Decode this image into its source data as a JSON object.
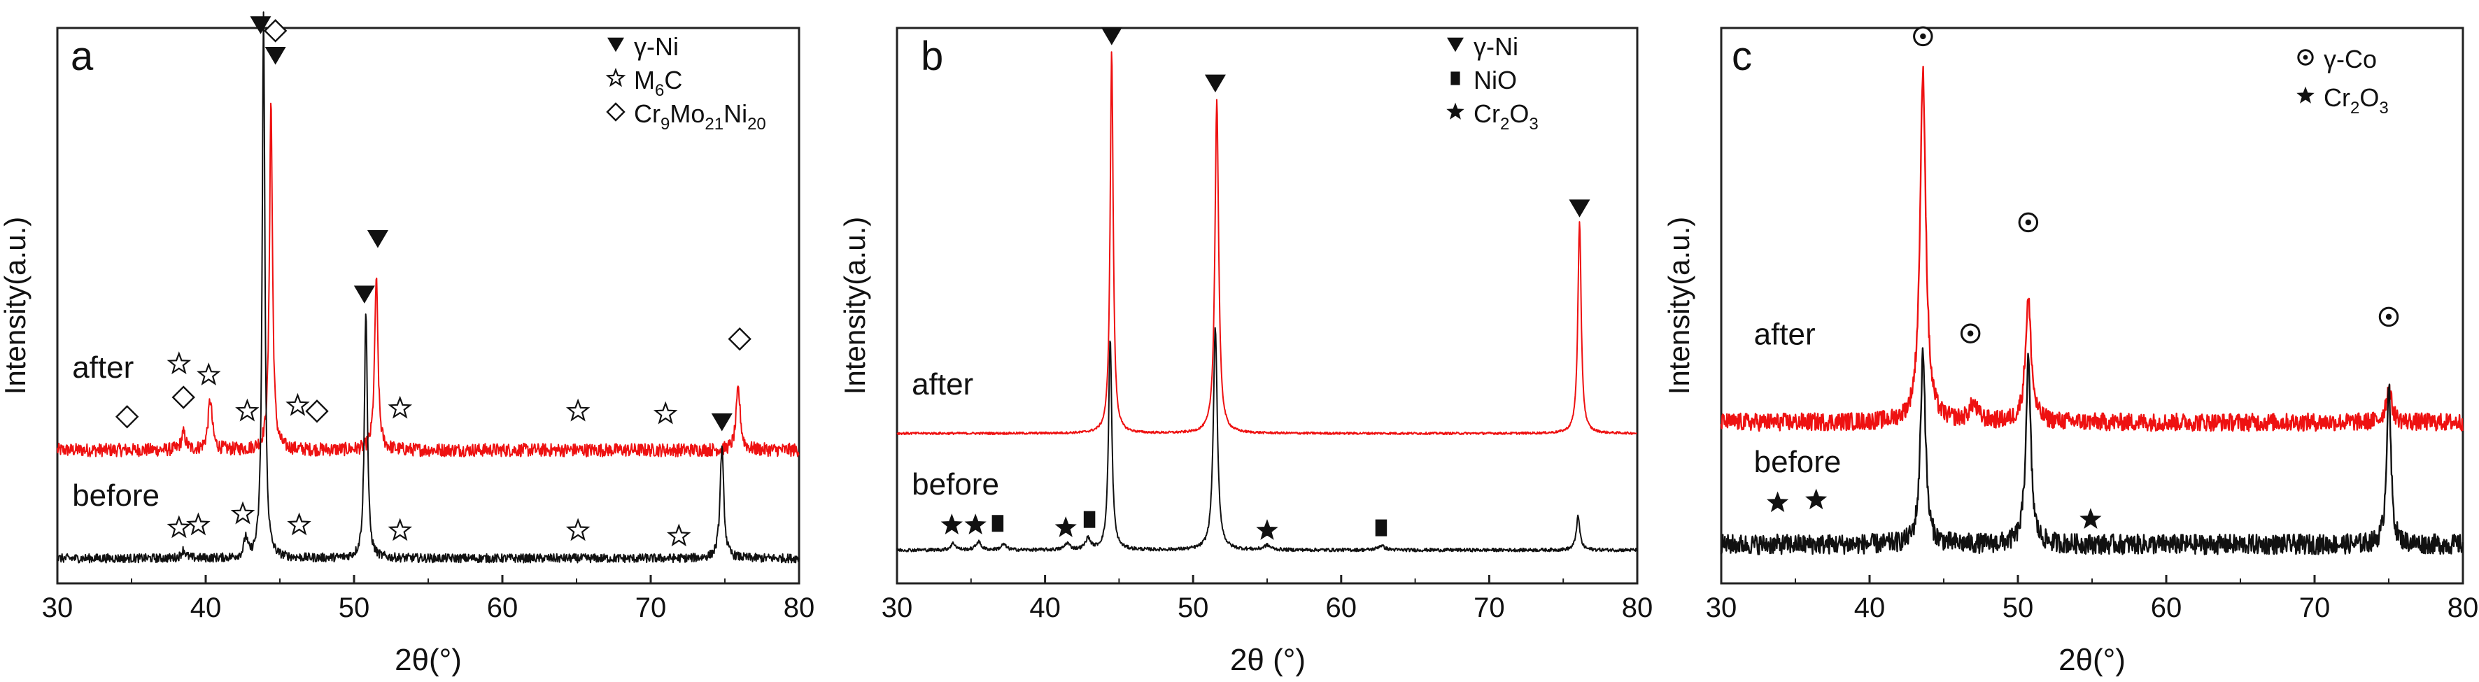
{
  "colors": {
    "after": "#ee1111",
    "before": "#111111",
    "axis": "#222222",
    "text": "#111111"
  },
  "chart_data": [
    {
      "type": "line",
      "panel": "a",
      "title": "",
      "xlabel": "2θ(°)",
      "ylabel": "Intensity(a.u.)",
      "xlim": [
        30,
        80
      ],
      "xticks": [
        30,
        40,
        50,
        60,
        70,
        80
      ],
      "y_ticks_shown": false,
      "legend": [
        {
          "symbol": "triangle-down",
          "label": "γ-Ni",
          "parts": [
            [
              "γ-Ni",
              ""
            ]
          ]
        },
        {
          "symbol": "star-open",
          "label": "M6C",
          "parts": [
            [
              "M",
              ""
            ],
            [
              "6",
              "sub"
            ],
            [
              "C",
              ""
            ]
          ]
        },
        {
          "symbol": "diamond-open",
          "label": "Cr9Mo21Ni20",
          "parts": [
            [
              "Cr",
              ""
            ],
            [
              "9",
              "sub"
            ],
            [
              "Mo",
              ""
            ],
            [
              "21",
              "sub"
            ],
            [
              "Ni",
              ""
            ],
            [
              "20",
              "sub"
            ]
          ]
        }
      ],
      "series": [
        {
          "name": "after",
          "color": "#ee1111",
          "baseline": 0.24,
          "noise": 0.012,
          "peaks": [
            {
              "x": 38.5,
              "height": 0.03,
              "width": 0.25
            },
            {
              "x": 40.3,
              "height": 0.09,
              "width": 0.25
            },
            {
              "x": 44.4,
              "height": 0.63,
              "width": 0.18
            },
            {
              "x": 51.5,
              "height": 0.31,
              "width": 0.2
            },
            {
              "x": 75.9,
              "height": 0.11,
              "width": 0.25
            }
          ],
          "markers": [
            {
              "x": 34.7,
              "y": 0.3,
              "symbol": "diamond-open"
            },
            {
              "x": 38.2,
              "y": 0.395,
              "symbol": "star-open"
            },
            {
              "x": 38.5,
              "y": 0.335,
              "symbol": "diamond-open"
            },
            {
              "x": 40.2,
              "y": 0.375,
              "symbol": "star-open"
            },
            {
              "x": 42.8,
              "y": 0.31,
              "symbol": "star-open"
            },
            {
              "x": 44.7,
              "y": 0.995,
              "symbol": "diamond-open"
            },
            {
              "x": 44.7,
              "y": 0.95,
              "symbol": "triangle-down"
            },
            {
              "x": 46.2,
              "y": 0.32,
              "symbol": "star-open"
            },
            {
              "x": 47.5,
              "y": 0.31,
              "symbol": "diamond-open"
            },
            {
              "x": 50.7,
              "y": 0.52,
              "symbol": "triangle-down"
            },
            {
              "x": 51.6,
              "y": 0.62,
              "symbol": "triangle-down"
            },
            {
              "x": 53.1,
              "y": 0.315,
              "symbol": "star-open"
            },
            {
              "x": 65.1,
              "y": 0.31,
              "symbol": "star-open"
            },
            {
              "x": 71.0,
              "y": 0.305,
              "symbol": "star-open"
            },
            {
              "x": 76.0,
              "y": 0.44,
              "symbol": "diamond-open"
            }
          ],
          "label": "after",
          "label_at": {
            "x": 31.0,
            "y": 0.37
          }
        },
        {
          "name": "before",
          "color": "#111111",
          "baseline": 0.045,
          "noise": 0.008,
          "peaks": [
            {
              "x": 38.5,
              "height": 0.015,
              "width": 0.25
            },
            {
              "x": 42.7,
              "height": 0.035,
              "width": 0.2
            },
            {
              "x": 43.9,
              "height": 0.98,
              "width": 0.16
            },
            {
              "x": 50.8,
              "height": 0.45,
              "width": 0.18
            },
            {
              "x": 74.8,
              "height": 0.2,
              "width": 0.22
            }
          ],
          "markers": [
            {
              "x": 38.2,
              "y": 0.1,
              "symbol": "star-open"
            },
            {
              "x": 39.5,
              "y": 0.105,
              "symbol": "star-open"
            },
            {
              "x": 42.5,
              "y": 0.125,
              "symbol": "star-open"
            },
            {
              "x": 43.7,
              "y": 1.005,
              "symbol": "triangle-down"
            },
            {
              "x": 46.3,
              "y": 0.105,
              "symbol": "star-open"
            },
            {
              "x": 53.1,
              "y": 0.095,
              "symbol": "star-open"
            },
            {
              "x": 65.1,
              "y": 0.095,
              "symbol": "star-open"
            },
            {
              "x": 71.9,
              "y": 0.085,
              "symbol": "star-open"
            },
            {
              "x": 74.8,
              "y": 0.29,
              "symbol": "triangle-down"
            }
          ],
          "label": "before",
          "label_at": {
            "x": 31.0,
            "y": 0.14
          }
        }
      ]
    },
    {
      "type": "line",
      "panel": "b",
      "title": "",
      "xlabel": "2θ (°)",
      "ylabel": "Intensity(a.u.)",
      "xlim": [
        30,
        80
      ],
      "xticks": [
        30,
        40,
        50,
        60,
        70,
        80
      ],
      "y_ticks_shown": false,
      "legend": [
        {
          "symbol": "triangle-down",
          "label": "γ-Ni",
          "parts": [
            [
              "γ-Ni",
              ""
            ]
          ]
        },
        {
          "symbol": "square-filled",
          "label": "NiO",
          "parts": [
            [
              "NiO",
              ""
            ]
          ]
        },
        {
          "symbol": "star-filled",
          "label": "Cr2O3",
          "parts": [
            [
              "Cr",
              ""
            ],
            [
              "2",
              "sub"
            ],
            [
              "O",
              ""
            ],
            [
              "3",
              "sub"
            ]
          ]
        }
      ],
      "series": [
        {
          "name": "after",
          "color": "#ee1111",
          "baseline": 0.27,
          "noise": 0.002,
          "peaks": [
            {
              "x": 44.5,
              "height": 0.69,
              "width": 0.18
            },
            {
              "x": 51.6,
              "height": 0.6,
              "width": 0.22
            },
            {
              "x": 76.1,
              "height": 0.38,
              "width": 0.2
            }
          ],
          "markers": [
            {
              "x": 44.5,
              "y": 0.985,
              "symbol": "triangle-down"
            },
            {
              "x": 51.5,
              "y": 0.9,
              "symbol": "triangle-down"
            },
            {
              "x": 76.1,
              "y": 0.675,
              "symbol": "triangle-down"
            }
          ],
          "label": "after",
          "label_at": {
            "x": 31.0,
            "y": 0.34
          }
        },
        {
          "name": "before",
          "color": "#111111",
          "baseline": 0.06,
          "noise": 0.003,
          "peaks": [
            {
              "x": 33.8,
              "height": 0.012,
              "width": 0.3
            },
            {
              "x": 35.5,
              "height": 0.015,
              "width": 0.3
            },
            {
              "x": 37.2,
              "height": 0.01,
              "width": 0.3
            },
            {
              "x": 41.5,
              "height": 0.012,
              "width": 0.3
            },
            {
              "x": 42.9,
              "height": 0.02,
              "width": 0.3
            },
            {
              "x": 44.4,
              "height": 0.38,
              "width": 0.2
            },
            {
              "x": 51.5,
              "height": 0.4,
              "width": 0.24
            },
            {
              "x": 55.0,
              "height": 0.008,
              "width": 0.4
            },
            {
              "x": 62.7,
              "height": 0.008,
              "width": 0.4
            },
            {
              "x": 76.0,
              "height": 0.06,
              "width": 0.22
            }
          ],
          "markers": [
            {
              "x": 33.7,
              "y": 0.105,
              "symbol": "star-filled"
            },
            {
              "x": 35.3,
              "y": 0.105,
              "symbol": "star-filled"
            },
            {
              "x": 36.8,
              "y": 0.108,
              "symbol": "square-filled"
            },
            {
              "x": 41.4,
              "y": 0.1,
              "symbol": "star-filled"
            },
            {
              "x": 43.0,
              "y": 0.115,
              "symbol": "square-filled"
            },
            {
              "x": 55.0,
              "y": 0.095,
              "symbol": "star-filled"
            },
            {
              "x": 62.7,
              "y": 0.1,
              "symbol": "square-filled"
            }
          ],
          "label": "before",
          "label_at": {
            "x": 31.0,
            "y": 0.16
          }
        }
      ]
    },
    {
      "type": "line",
      "panel": "c",
      "title": "",
      "xlabel": "2θ(°)",
      "ylabel": "Intensity(a.u.)",
      "xlim": [
        30,
        80
      ],
      "xticks": [
        30,
        40,
        50,
        60,
        70,
        80
      ],
      "y_ticks_shown": false,
      "legend": [
        {
          "symbol": "circle-dot",
          "label": "γ-Co",
          "parts": [
            [
              "γ-Co",
              ""
            ]
          ]
        },
        {
          "symbol": "star-filled",
          "label": "Cr2O3",
          "parts": [
            [
              "Cr",
              ""
            ],
            [
              "2",
              "sub"
            ],
            [
              "O",
              ""
            ],
            [
              "3",
              "sub"
            ]
          ]
        }
      ],
      "series": [
        {
          "name": "after",
          "color": "#ee1111",
          "baseline": 0.29,
          "noise": 0.016,
          "peaks": [
            {
              "x": 43.6,
              "height": 0.63,
              "width": 0.35
            },
            {
              "x": 47.0,
              "height": 0.03,
              "width": 0.5
            },
            {
              "x": 50.7,
              "height": 0.22,
              "width": 0.35
            },
            {
              "x": 75.0,
              "height": 0.06,
              "width": 0.35
            }
          ],
          "markers": [
            {
              "x": 43.6,
              "y": 0.985,
              "symbol": "circle-dot"
            },
            {
              "x": 46.8,
              "y": 0.45,
              "symbol": "circle-dot"
            },
            {
              "x": 50.7,
              "y": 0.65,
              "symbol": "circle-dot"
            },
            {
              "x": 75.0,
              "y": 0.48,
              "symbol": "circle-dot"
            }
          ],
          "label": "after",
          "label_at": {
            "x": 32.2,
            "y": 0.43
          }
        },
        {
          "name": "before",
          "color": "#111111",
          "baseline": 0.07,
          "noise": 0.018,
          "peaks": [
            {
              "x": 43.6,
              "height": 0.35,
              "width": 0.3
            },
            {
              "x": 50.7,
              "height": 0.33,
              "width": 0.3
            },
            {
              "x": 75.0,
              "height": 0.29,
              "width": 0.25
            }
          ],
          "markers": [
            {
              "x": 33.8,
              "y": 0.145,
              "symbol": "star-filled"
            },
            {
              "x": 36.4,
              "y": 0.15,
              "symbol": "star-filled"
            },
            {
              "x": 54.9,
              "y": 0.115,
              "symbol": "star-filled"
            }
          ],
          "label": "before",
          "label_at": {
            "x": 32.2,
            "y": 0.2
          }
        }
      ]
    }
  ]
}
